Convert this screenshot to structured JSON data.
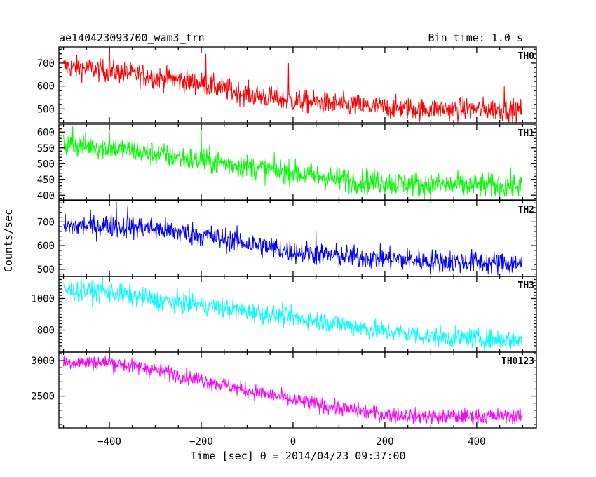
{
  "header": {
    "title": "ae140423093700_wam3_trn",
    "bin_time": "Bin time: 1.0 s"
  },
  "chart_data": {
    "type": "line",
    "title": "ae140423093700_wam3_trn",
    "subtitle": "Bin time: 1.0 s",
    "xlabel": "Time [sec] 0 = 2014/04/23 09:37:00",
    "ylabel": "Counts/sec",
    "xlim": [
      -510,
      530
    ],
    "x_ticks": [
      -400,
      -200,
      0,
      200,
      400
    ],
    "x_tick_labels": [
      "−400",
      "−200",
      "0",
      "200",
      "400"
    ],
    "x_range": [
      -500,
      499
    ],
    "grid": false,
    "panels": [
      {
        "name": "TH0",
        "color": "#ff0000",
        "ylim": [
          440,
          770
        ],
        "y_ticks": [
          500,
          600,
          700
        ],
        "trend": [
          [
            -500,
            685
          ],
          [
            -400,
            665
          ],
          [
            -300,
            640
          ],
          [
            -200,
            610
          ],
          [
            -100,
            565
          ],
          [
            0,
            535
          ],
          [
            100,
            520
          ],
          [
            200,
            505
          ],
          [
            300,
            500
          ],
          [
            400,
            500
          ],
          [
            499,
            495
          ]
        ],
        "noise": 25,
        "spike": [
          [
            -400,
            770
          ],
          [
            -190,
            740
          ],
          [
            -10,
            700
          ],
          [
            460,
            600
          ]
        ]
      },
      {
        "name": "TH1",
        "color": "#00ff00",
        "ylim": [
          385,
          625
        ],
        "y_ticks": [
          400,
          450,
          500,
          550,
          600
        ],
        "trend": [
          [
            -500,
            560
          ],
          [
            -400,
            550
          ],
          [
            -300,
            530
          ],
          [
            -200,
            510
          ],
          [
            -100,
            490
          ],
          [
            0,
            470
          ],
          [
            100,
            450
          ],
          [
            200,
            440
          ],
          [
            300,
            432
          ],
          [
            400,
            430
          ],
          [
            499,
            430
          ]
        ],
        "noise": 20,
        "spike": [
          [
            -200,
            620
          ],
          [
            -400,
            605
          ],
          [
            -480,
            620
          ]
        ]
      },
      {
        "name": "TH2",
        "color": "#0000ff",
        "ylim": [
          470,
          790
        ],
        "y_ticks": [
          500,
          600,
          700
        ],
        "trend": [
          [
            -500,
            680
          ],
          [
            -400,
            685
          ],
          [
            -300,
            670
          ],
          [
            -200,
            645
          ],
          [
            -100,
            610
          ],
          [
            0,
            575
          ],
          [
            100,
            555
          ],
          [
            200,
            545
          ],
          [
            300,
            535
          ],
          [
            400,
            530
          ],
          [
            499,
            525
          ]
        ],
        "noise": 25,
        "spike": [
          [
            -385,
            790
          ],
          [
            -360,
            770
          ],
          [
            50,
            660
          ]
        ]
      },
      {
        "name": "TH3",
        "color": "#00ffff",
        "ylim": [
          660,
          1140
        ],
        "y_ticks": [
          800,
          1000
        ],
        "trend": [
          [
            -500,
            1050
          ],
          [
            -400,
            1040
          ],
          [
            -300,
            990
          ],
          [
            -200,
            960
          ],
          [
            -100,
            920
          ],
          [
            0,
            880
          ],
          [
            100,
            840
          ],
          [
            200,
            790
          ],
          [
            300,
            760
          ],
          [
            400,
            745
          ],
          [
            499,
            740
          ]
        ],
        "noise": 32,
        "spike": [
          [
            -415,
            1140
          ]
        ]
      },
      {
        "name": "TH0123",
        "color": "#ff00ff",
        "ylim": [
          2050,
          3120
        ],
        "y_ticks": [
          2500,
          3000
        ],
        "trend": [
          [
            -500,
            2980
          ],
          [
            -400,
            2970
          ],
          [
            -300,
            2870
          ],
          [
            -200,
            2730
          ],
          [
            -100,
            2580
          ],
          [
            0,
            2440
          ],
          [
            100,
            2330
          ],
          [
            200,
            2240
          ],
          [
            300,
            2210
          ],
          [
            400,
            2210
          ],
          [
            499,
            2220
          ]
        ],
        "noise": 55,
        "spike": [
          [
            -400,
            3090
          ]
        ]
      }
    ]
  }
}
